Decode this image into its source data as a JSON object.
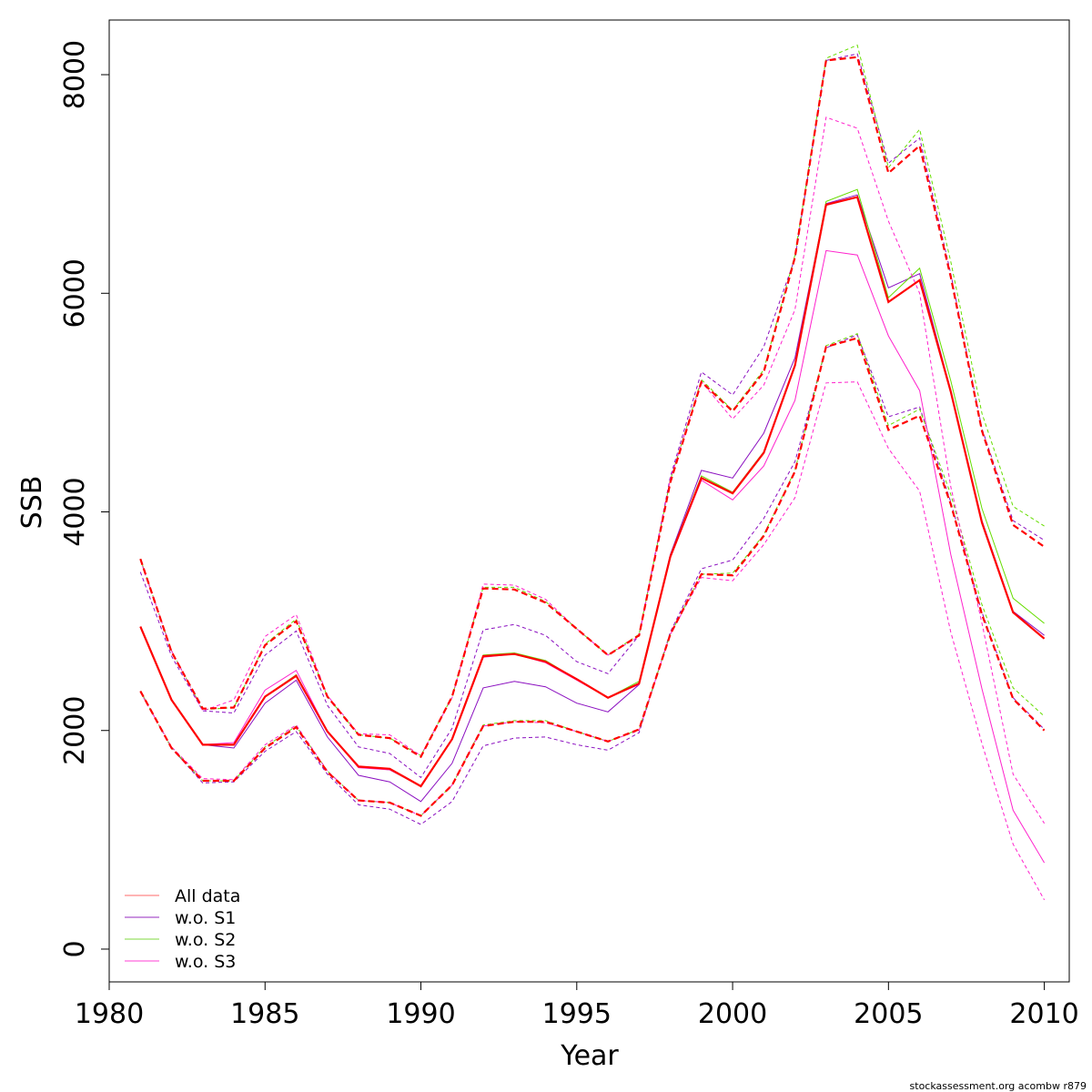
{
  "footer": "stockassessment.org acombw r879",
  "chart_data": {
    "type": "line",
    "xlabel": "Year",
    "ylabel": "SSB",
    "xlim": [
      1980,
      2010.8
    ],
    "ylim": [
      -300,
      8500
    ],
    "x_ticks": [
      1980,
      1985,
      1990,
      1995,
      2000,
      2005,
      2010
    ],
    "y_ticks": [
      0,
      2000,
      4000,
      6000,
      8000
    ],
    "grid": false,
    "legend_position": "bottom-left",
    "x": [
      1981,
      1982,
      1983,
      1984,
      1985,
      1986,
      1987,
      1988,
      1989,
      1990,
      1991,
      1992,
      1993,
      1994,
      1995,
      1996,
      1997,
      1998,
      1999,
      2000,
      2001,
      2002,
      2003,
      2004,
      2005,
      2006,
      2007,
      2008,
      2009,
      2010
    ],
    "series": [
      {
        "name": "All data",
        "color": "#ff0000",
        "estimate": [
          2950,
          2280,
          1870,
          1870,
          2310,
          2500,
          1990,
          1670,
          1650,
          1490,
          1920,
          2680,
          2700,
          2630,
          2470,
          2300,
          2430,
          3590,
          4310,
          4170,
          4540,
          5340,
          6810,
          6880,
          5920,
          6120,
          5100,
          3900,
          3080,
          2840
        ],
        "upper": [
          3570,
          2720,
          2200,
          2210,
          2780,
          3000,
          2310,
          1960,
          1930,
          1760,
          2310,
          3300,
          3290,
          3170,
          2930,
          2690,
          2870,
          4270,
          5190,
          4920,
          5280,
          6330,
          8130,
          8160,
          7100,
          7350,
          6150,
          4740,
          3880,
          3680
        ],
        "lower": [
          2360,
          1840,
          1540,
          1540,
          1840,
          2030,
          1620,
          1360,
          1340,
          1220,
          1500,
          2040,
          2080,
          2080,
          1990,
          1900,
          2010,
          2880,
          3430,
          3420,
          3780,
          4370,
          5510,
          5590,
          4750,
          4880,
          4070,
          3060,
          2290,
          2000
        ]
      },
      {
        "name": "w.o. S1",
        "color": "#8b10c0",
        "estimate": [
          2950,
          2280,
          1870,
          1840,
          2250,
          2460,
          1940,
          1590,
          1530,
          1350,
          1700,
          2390,
          2450,
          2400,
          2250,
          2170,
          2420,
          3610,
          4380,
          4310,
          4720,
          5410,
          6820,
          6900,
          6050,
          6180,
          5110,
          3920,
          3090,
          2870
        ],
        "upper": [
          3450,
          2680,
          2180,
          2160,
          2690,
          2910,
          2230,
          1850,
          1790,
          1570,
          2020,
          2920,
          2970,
          2870,
          2630,
          2520,
          2870,
          4320,
          5280,
          5070,
          5510,
          6320,
          8130,
          8190,
          7190,
          7420,
          6180,
          4760,
          3920,
          3740
        ],
        "lower": [
          2360,
          1840,
          1520,
          1530,
          1810,
          1990,
          1600,
          1320,
          1280,
          1140,
          1350,
          1860,
          1930,
          1940,
          1870,
          1820,
          1980,
          2900,
          3480,
          3560,
          3940,
          4460,
          5500,
          5620,
          4870,
          4960,
          4090,
          3080,
          2300,
          2010
        ]
      },
      {
        "name": "w.o. S2",
        "color": "#66dd00",
        "estimate": [
          2950,
          2280,
          1870,
          1870,
          2310,
          2510,
          1990,
          1670,
          1640,
          1490,
          1920,
          2690,
          2710,
          2640,
          2470,
          2300,
          2450,
          3600,
          4330,
          4180,
          4550,
          5350,
          6840,
          6950,
          5960,
          6230,
          5200,
          4030,
          3210,
          2980
        ],
        "upper": [
          3570,
          2730,
          2190,
          2210,
          2790,
          3020,
          2310,
          1960,
          1930,
          1770,
          2310,
          3310,
          3310,
          3180,
          2930,
          2690,
          2880,
          4290,
          5210,
          4930,
          5300,
          6350,
          8150,
          8270,
          7150,
          7500,
          6290,
          4900,
          4050,
          3870
        ],
        "lower": [
          2360,
          1840,
          1540,
          1540,
          1850,
          2040,
          1630,
          1360,
          1340,
          1220,
          1500,
          2050,
          2090,
          2090,
          1990,
          1900,
          2010,
          2880,
          3430,
          3440,
          3790,
          4380,
          5520,
          5630,
          4790,
          4940,
          4160,
          3150,
          2390,
          2130
        ]
      },
      {
        "name": "w.o. S3",
        "color": "#ff22cc",
        "estimate": [
          2950,
          2280,
          1870,
          1890,
          2370,
          2550,
          1990,
          1660,
          1640,
          1490,
          1920,
          2670,
          2700,
          2620,
          2460,
          2300,
          2420,
          3580,
          4290,
          4110,
          4420,
          5020,
          6390,
          6350,
          5610,
          5110,
          3610,
          2380,
          1270,
          790
        ],
        "upper": [
          3560,
          2730,
          2180,
          2280,
          2860,
          3060,
          2320,
          1970,
          1960,
          1770,
          2300,
          3340,
          3330,
          3200,
          2930,
          2690,
          2860,
          4300,
          5190,
          4850,
          5160,
          5850,
          7610,
          7510,
          6660,
          6000,
          4230,
          2980,
          1600,
          1150
        ],
        "lower": [
          2350,
          1850,
          1560,
          1550,
          1870,
          2050,
          1630,
          1360,
          1340,
          1220,
          1500,
          2040,
          2080,
          2070,
          1990,
          1900,
          2000,
          2880,
          3400,
          3370,
          3700,
          4130,
          5180,
          5190,
          4580,
          4190,
          2900,
          1880,
          960,
          450
        ]
      }
    ]
  }
}
